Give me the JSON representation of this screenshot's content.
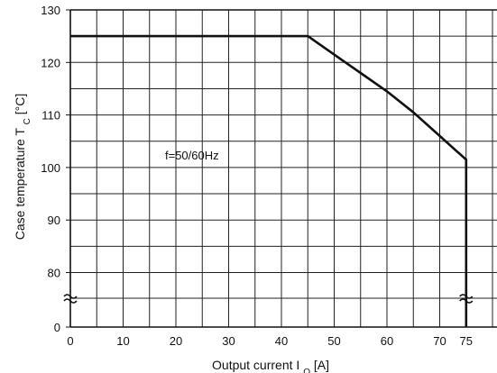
{
  "chart_data": {
    "type": "line",
    "xlabel_main": "Output current I",
    "xlabel_sub": "O",
    "xlabel_unit": " [A]",
    "ylabel_main": "Case temperature T",
    "ylabel_sub": "C",
    "ylabel_unit": " [°C]",
    "annotation": "f=50/60Hz",
    "x_ticks": [
      "0",
      "10",
      "20",
      "30",
      "40",
      "50",
      "60",
      "70",
      "75"
    ],
    "y_ticks": [
      "0",
      "80",
      "90",
      "100",
      "110",
      "120",
      "130"
    ],
    "x_range": [
      0,
      80
    ],
    "y_range_shown": [
      75,
      130
    ],
    "y_axis_break": true,
    "grid": true,
    "series": [
      {
        "x": [
          0,
          45,
          50,
          55,
          60,
          65,
          70,
          75,
          75
        ],
        "y": [
          125,
          125,
          121.5,
          118,
          114.5,
          110.5,
          106,
          101.5,
          75
        ]
      }
    ],
    "colors": {
      "line": "#111111",
      "grid": "#222222"
    }
  }
}
